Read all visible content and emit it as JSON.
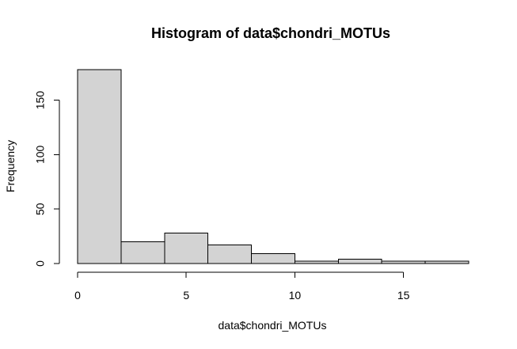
{
  "chart_data": {
    "type": "bar",
    "title": "Histogram of data$chondri_MOTUs",
    "xlabel": "data$chondri_MOTUs",
    "ylabel": "Frequency",
    "bins": [
      {
        "start": 0,
        "end": 2,
        "count": 178
      },
      {
        "start": 2,
        "end": 4,
        "count": 20
      },
      {
        "start": 4,
        "end": 6,
        "count": 28
      },
      {
        "start": 6,
        "end": 8,
        "count": 17
      },
      {
        "start": 8,
        "end": 10,
        "count": 9
      },
      {
        "start": 10,
        "end": 12,
        "count": 2
      },
      {
        "start": 12,
        "end": 14,
        "count": 4
      },
      {
        "start": 14,
        "end": 16,
        "count": 2
      },
      {
        "start": 16,
        "end": 18,
        "count": 2
      }
    ],
    "x_ticks": [
      0,
      5,
      10,
      15
    ],
    "y_ticks": [
      0,
      50,
      100,
      150
    ],
    "xlim": [
      0,
      18
    ],
    "ylim": [
      0,
      178
    ],
    "grid": false,
    "bar_fill": "#d3d3d3",
    "bar_stroke": "#000000"
  }
}
